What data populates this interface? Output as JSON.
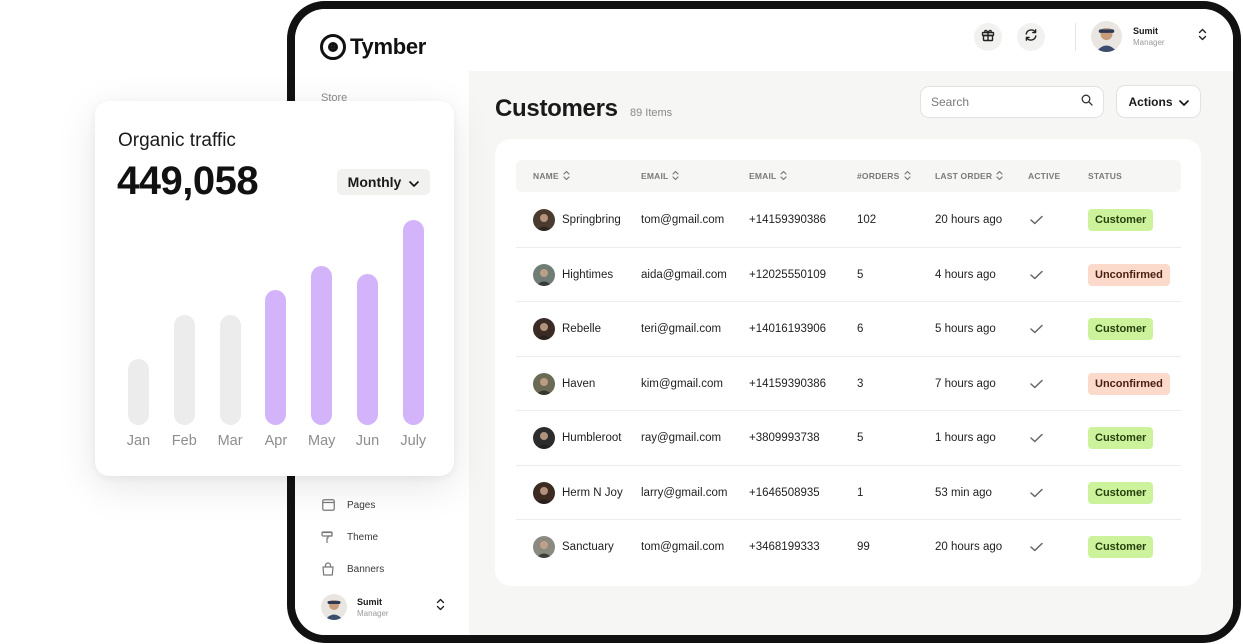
{
  "app": {
    "name": "Tymber"
  },
  "sidebar": {
    "section_label": "Store",
    "items": [
      {
        "label": "Pages",
        "icon": "pages-icon"
      },
      {
        "label": "Theme",
        "icon": "theme-icon"
      },
      {
        "label": "Banners",
        "icon": "banners-icon"
      }
    ],
    "user": {
      "name": "Sumit",
      "role": "Manager"
    }
  },
  "topbar": {
    "icons": [
      "gift-icon",
      "refresh-icon"
    ],
    "user": {
      "name": "Sumit",
      "role": "Manager"
    }
  },
  "page": {
    "title": "Customers",
    "count": "89 Items",
    "search_placeholder": "Search",
    "actions_label": "Actions"
  },
  "table": {
    "columns": [
      "NAME",
      "EMAIL",
      "EMAIL",
      "#ORDERS",
      "LAST ORDER",
      "ACTIVE",
      "STATUS"
    ],
    "rows": [
      {
        "name": "Springbring",
        "email": "tom@gmail.com",
        "phone": "+14159390386",
        "orders": "102",
        "last_order": "20 hours ago",
        "status": "Customer",
        "avatar_color": "#4a3b2e"
      },
      {
        "name": "Hightimes",
        "email": "aida@gmail.com",
        "phone": "+12025550109",
        "orders": "5",
        "last_order": "4 hours ago",
        "status": "Unconfirmed",
        "avatar_color": "#6f7d76"
      },
      {
        "name": "Rebelle",
        "email": "teri@gmail.com",
        "phone": "+14016193906",
        "orders": "6",
        "last_order": "5 hours ago",
        "status": "Customer",
        "avatar_color": "#3a2c25"
      },
      {
        "name": "Haven",
        "email": "kim@gmail.com",
        "phone": "+14159390386",
        "orders": "3",
        "last_order": "7 hours ago",
        "status": "Unconfirmed",
        "avatar_color": "#6b6a55"
      },
      {
        "name": "Humbleroot",
        "email": "ray@gmail.com",
        "phone": "+3809993738",
        "orders": "5",
        "last_order": "1 hours ago",
        "status": "Customer",
        "avatar_color": "#2c2c2c"
      },
      {
        "name": "Herm N Joy",
        "email": "larry@gmail.com",
        "phone": "+1646508935",
        "orders": "1",
        "last_order": "53 min ago",
        "status": "Customer",
        "avatar_color": "#3d2a20"
      },
      {
        "name": "Sanctuary",
        "email": "tom@gmail.com",
        "phone": "+3468199333",
        "orders": "99",
        "last_order": "20 hours ago",
        "status": "Customer",
        "avatar_color": "#8a8a80"
      }
    ]
  },
  "traffic": {
    "title": "Organic traffic",
    "value": "449,058",
    "period": "Monthly"
  },
  "chart_data": {
    "type": "bar",
    "categories": [
      "Jan",
      "Feb",
      "Mar",
      "Apr",
      "May",
      "Jun",
      "July"
    ],
    "values": [
      32,
      53,
      53,
      65,
      77,
      73,
      99
    ],
    "highlighted": [
      false,
      false,
      false,
      true,
      true,
      true,
      true
    ],
    "ylim": [
      0,
      100
    ],
    "colors": {
      "muted": "#ececec",
      "highlight": "#d3b4fb"
    },
    "title": "",
    "xlabel": "",
    "ylabel": ""
  }
}
